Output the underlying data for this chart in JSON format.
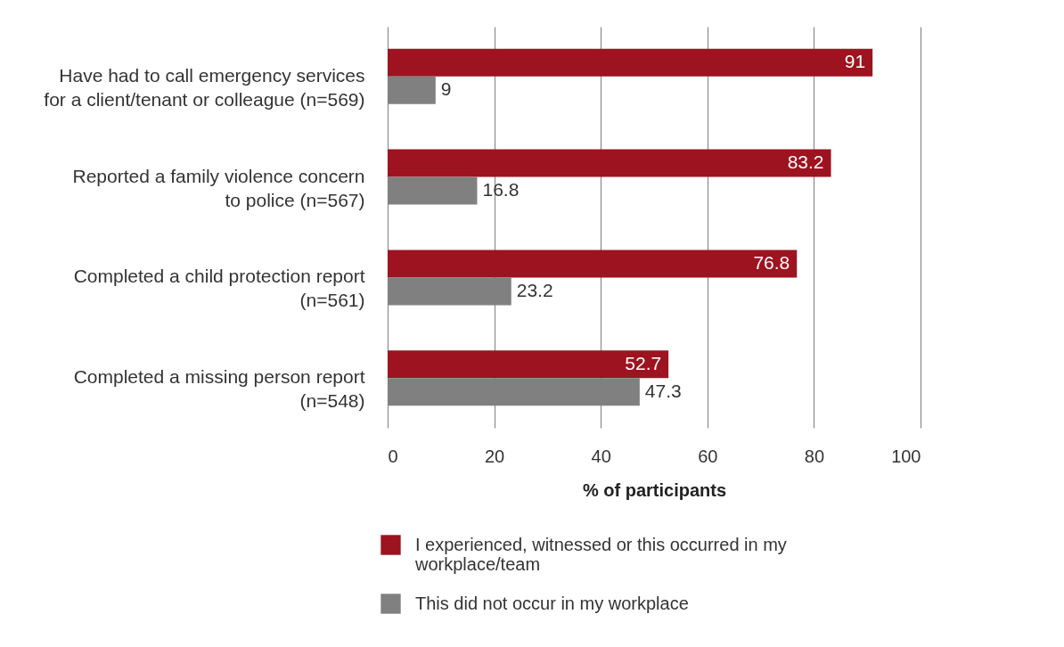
{
  "chart_data": {
    "type": "bar",
    "orientation": "horizontal",
    "categories": [
      "Have had to call emergency services for a client/tenant or colleague (n=569)",
      "Reported a family violence concern to police (n=567)",
      "Completed a child protection report (n=561)",
      "Completed a missing person report (n=548)"
    ],
    "series": [
      {
        "name": "I experienced, witnessed or this occurred in my workplace/team",
        "color": "#9d1320",
        "values": [
          91,
          83.2,
          76.8,
          52.7
        ]
      },
      {
        "name": "This did not occur in my workplace",
        "color": "#808080",
        "values": [
          9,
          16.8,
          23.2,
          47.3
        ]
      }
    ],
    "xlim": [
      0,
      100
    ],
    "xticks": [
      0,
      20,
      40,
      60,
      80,
      100
    ],
    "xlabel": "% of participants",
    "data_labels": true,
    "grid": "x",
    "legend": "bottom"
  }
}
